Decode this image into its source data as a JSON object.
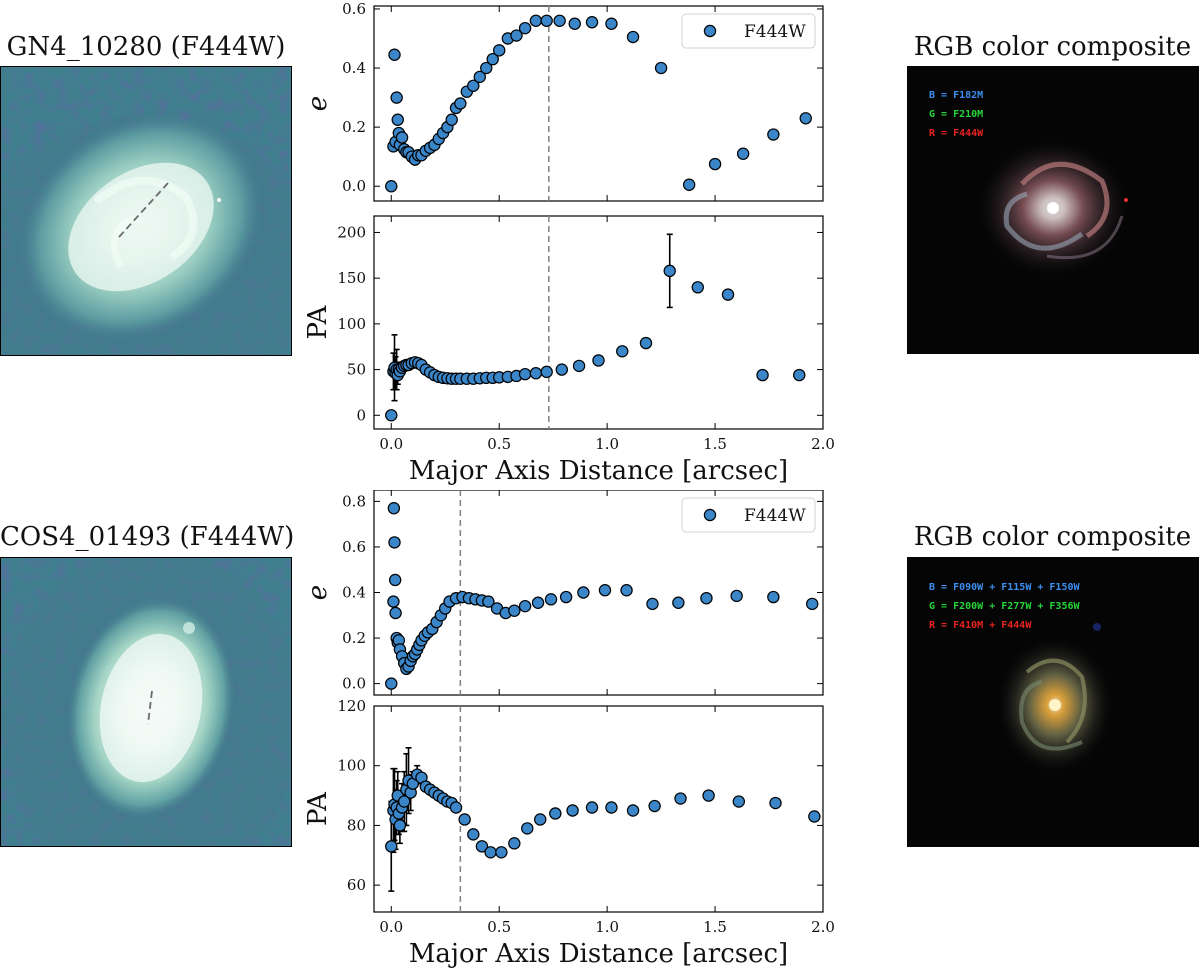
{
  "colors": {
    "marker": "#3a86c8",
    "edge": "#000000",
    "dash": "#808080",
    "errbar": "#000000"
  },
  "rows": [
    {
      "id": "gn4",
      "image_title": "GN4_10280 (F444W)",
      "rgb_title": "RGB color composite",
      "rgb_labels": [
        {
          "text": "B = F182M",
          "color": "#3d8ef0"
        },
        {
          "text": "G = F210M",
          "color": "#27d43a"
        },
        {
          "text": "R = F444W",
          "color": "#e8221f"
        }
      ]
    },
    {
      "id": "cos4",
      "image_title": "COS4_01493 (F444W)",
      "rgb_title": "RGB color composite",
      "rgb_labels": [
        {
          "text": "B = F090W + F115W + F150W",
          "color": "#3d8ef0"
        },
        {
          "text": "G = F200W + F277W + F356W",
          "color": "#27d43a"
        },
        {
          "text": "R = F410M + F444W",
          "color": "#e8221f"
        }
      ]
    }
  ],
  "chart_data": [
    {
      "type": "scatter",
      "id": "gn4-e",
      "title": "",
      "xlabel": "",
      "ylabel": "e",
      "xlim": [
        -0.08,
        2.0
      ],
      "ylim": [
        -0.05,
        0.61
      ],
      "xticks": [
        0.0,
        0.5,
        1.0,
        1.5,
        2.0
      ],
      "show_xticklabels": false,
      "yticks": [
        0.0,
        0.2,
        0.4,
        0.6
      ],
      "ytick_labels": [
        "0.0",
        "0.2",
        "0.4",
        "0.6"
      ],
      "vline": 0.73,
      "legend": "F444W",
      "legend_loc": "upper right",
      "x": [
        0.0,
        0.01,
        0.015,
        0.02,
        0.025,
        0.03,
        0.035,
        0.04,
        0.05,
        0.06,
        0.07,
        0.08,
        0.095,
        0.11,
        0.125,
        0.14,
        0.16,
        0.18,
        0.2,
        0.22,
        0.24,
        0.26,
        0.28,
        0.3,
        0.32,
        0.35,
        0.38,
        0.41,
        0.44,
        0.47,
        0.5,
        0.54,
        0.58,
        0.62,
        0.67,
        0.72,
        0.78,
        0.85,
        0.93,
        1.02,
        1.12,
        1.25,
        1.38,
        1.5,
        1.63,
        1.77,
        1.92
      ],
      "y": [
        0.0,
        0.135,
        0.445,
        0.15,
        0.3,
        0.225,
        0.18,
        0.14,
        0.165,
        0.125,
        0.115,
        0.115,
        0.1,
        0.09,
        0.105,
        0.105,
        0.12,
        0.13,
        0.14,
        0.16,
        0.18,
        0.2,
        0.225,
        0.265,
        0.28,
        0.32,
        0.34,
        0.37,
        0.4,
        0.43,
        0.46,
        0.5,
        0.51,
        0.535,
        0.56,
        0.56,
        0.56,
        0.55,
        0.555,
        0.55,
        0.505,
        0.4,
        0.005,
        0.075,
        0.11,
        0.175,
        0.23
      ],
      "yerr": []
    },
    {
      "type": "scatter",
      "id": "gn4-pa",
      "title": "",
      "xlabel": "Major Axis Distance [arcsec]",
      "ylabel": "PA",
      "xlim": [
        -0.08,
        2.0
      ],
      "ylim": [
        -15,
        218
      ],
      "xticks": [
        0.0,
        0.5,
        1.0,
        1.5,
        2.0
      ],
      "xtick_labels": [
        "0.0",
        "0.5",
        "1.0",
        "1.5",
        "2.0"
      ],
      "show_xticklabels": true,
      "yticks": [
        0,
        50,
        100,
        150,
        200
      ],
      "ytick_labels": [
        "0",
        "50",
        "100",
        "150",
        "200"
      ],
      "vline": 0.73,
      "x": [
        0.0,
        0.01,
        0.015,
        0.02,
        0.025,
        0.03,
        0.035,
        0.04,
        0.05,
        0.06,
        0.07,
        0.08,
        0.095,
        0.11,
        0.125,
        0.14,
        0.16,
        0.18,
        0.2,
        0.22,
        0.24,
        0.26,
        0.28,
        0.3,
        0.32,
        0.35,
        0.38,
        0.41,
        0.44,
        0.47,
        0.5,
        0.54,
        0.58,
        0.62,
        0.67,
        0.72,
        0.79,
        0.87,
        0.96,
        1.07,
        1.18,
        1.29,
        1.42,
        1.56,
        1.72,
        1.89
      ],
      "y": [
        0.0,
        48.0,
        52.0,
        46.0,
        50.0,
        44.0,
        50.0,
        48.0,
        52.0,
        54.0,
        55.0,
        55.0,
        57.0,
        58.0,
        57.0,
        55.0,
        50.0,
        47.0,
        44.0,
        42.0,
        41.0,
        40.5,
        40.0,
        40.0,
        40.0,
        40.0,
        40.0,
        40.5,
        41.0,
        41.0,
        41.5,
        42.0,
        43.0,
        45.0,
        46.0,
        47.5,
        50.0,
        54.0,
        60.0,
        70.0,
        79.0,
        158.0,
        140.0,
        132.0,
        44.0,
        44.0
      ],
      "yerr": [
        0,
        20,
        36,
        18,
        22,
        10,
        8,
        6,
        5,
        4,
        0,
        0,
        0,
        0,
        0,
        0,
        0,
        0,
        0,
        0,
        0,
        0,
        0,
        0,
        0,
        0,
        0,
        0,
        0,
        0,
        0,
        0,
        0,
        0,
        0,
        0,
        0,
        0,
        0,
        0,
        0,
        40,
        0,
        0,
        0,
        0
      ]
    },
    {
      "type": "scatter",
      "id": "cos4-e",
      "title": "",
      "xlabel": "",
      "ylabel": "e",
      "xlim": [
        -0.08,
        2.0
      ],
      "ylim": [
        -0.05,
        0.85
      ],
      "xticks": [
        0.0,
        0.5,
        1.0,
        1.5,
        2.0
      ],
      "show_xticklabels": false,
      "yticks": [
        0.0,
        0.2,
        0.4,
        0.6,
        0.8
      ],
      "ytick_labels": [
        "0.0",
        "0.2",
        "0.4",
        "0.6",
        "0.8"
      ],
      "vline": 0.32,
      "legend": "F444W",
      "legend_loc": "upper right",
      "x": [
        0.0,
        0.01,
        0.012,
        0.015,
        0.018,
        0.02,
        0.025,
        0.03,
        0.035,
        0.04,
        0.05,
        0.06,
        0.07,
        0.08,
        0.09,
        0.1,
        0.11,
        0.12,
        0.13,
        0.14,
        0.155,
        0.17,
        0.19,
        0.21,
        0.23,
        0.25,
        0.27,
        0.3,
        0.33,
        0.36,
        0.39,
        0.42,
        0.45,
        0.49,
        0.53,
        0.57,
        0.62,
        0.68,
        0.74,
        0.81,
        0.89,
        0.99,
        1.09,
        1.21,
        1.33,
        1.46,
        1.6,
        1.77,
        1.95
      ],
      "y": [
        0.0,
        0.36,
        0.77,
        0.62,
        0.455,
        0.31,
        0.2,
        0.18,
        0.19,
        0.15,
        0.12,
        0.09,
        0.065,
        0.075,
        0.1,
        0.12,
        0.13,
        0.15,
        0.17,
        0.19,
        0.21,
        0.225,
        0.24,
        0.27,
        0.3,
        0.33,
        0.36,
        0.375,
        0.38,
        0.375,
        0.37,
        0.365,
        0.36,
        0.33,
        0.31,
        0.32,
        0.34,
        0.355,
        0.37,
        0.38,
        0.4,
        0.41,
        0.41,
        0.35,
        0.355,
        0.375,
        0.385,
        0.38,
        0.35
      ],
      "yerr": []
    },
    {
      "type": "scatter",
      "id": "cos4-pa",
      "title": "",
      "xlabel": "Major Axis Distance [arcsec]",
      "ylabel": "PA",
      "xlim": [
        -0.08,
        2.0
      ],
      "ylim": [
        51,
        120
      ],
      "xticks": [
        0.0,
        0.5,
        1.0,
        1.5,
        2.0
      ],
      "xtick_labels": [
        "0.0",
        "0.5",
        "1.0",
        "1.5",
        "2.0"
      ],
      "show_xticklabels": true,
      "yticks": [
        60,
        80,
        100,
        120
      ],
      "ytick_labels": [
        "60",
        "80",
        "100",
        "120"
      ],
      "vline": 0.32,
      "x": [
        0.0,
        0.01,
        0.015,
        0.02,
        0.025,
        0.03,
        0.035,
        0.04,
        0.05,
        0.06,
        0.07,
        0.08,
        0.09,
        0.1,
        0.12,
        0.14,
        0.16,
        0.18,
        0.2,
        0.22,
        0.24,
        0.26,
        0.28,
        0.3,
        0.34,
        0.38,
        0.42,
        0.46,
        0.51,
        0.57,
        0.63,
        0.69,
        0.76,
        0.84,
        0.93,
        1.02,
        1.12,
        1.22,
        1.34,
        1.47,
        1.61,
        1.78,
        1.96
      ],
      "y": [
        73.0,
        85.0,
        87.0,
        82.0,
        86.0,
        90.0,
        84.0,
        80.0,
        86.0,
        88.0,
        92.0,
        95.0,
        91.0,
        94.0,
        97.0,
        96.0,
        93.0,
        92.0,
        91.0,
        90.0,
        89.0,
        88.0,
        87.5,
        86.0,
        82.0,
        77.0,
        73.0,
        71.0,
        71.0,
        74.0,
        79.0,
        82.0,
        84.0,
        85.0,
        86.0,
        86.0,
        85.0,
        86.5,
        89.0,
        90.0,
        88.0,
        87.5,
        83.0
      ],
      "yerr": [
        15,
        14,
        12,
        10,
        9,
        8,
        7,
        6,
        8,
        10,
        12,
        11,
        6,
        4,
        3,
        0,
        0,
        0,
        0,
        0,
        0,
        0,
        0,
        0,
        0,
        0,
        0,
        0,
        0,
        0,
        0,
        0,
        0,
        0,
        0,
        0,
        0,
        0,
        0,
        0,
        0,
        0,
        0
      ]
    }
  ]
}
